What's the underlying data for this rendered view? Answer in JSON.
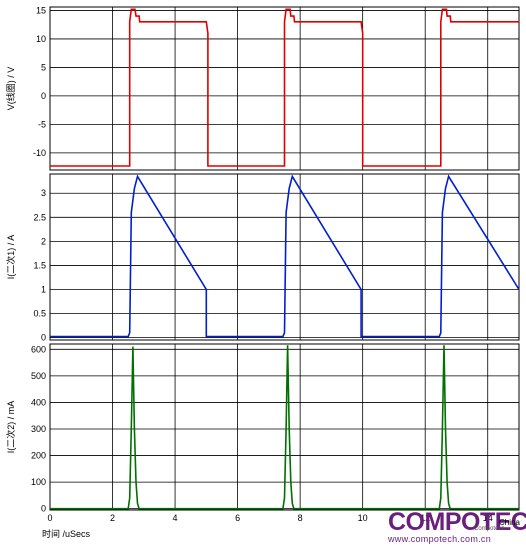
{
  "chart_data": [
    {
      "type": "line",
      "ylabel": "V(线圈) / V",
      "ylim": [
        -13,
        15.6
      ],
      "yticks": [
        -10,
        -5,
        0,
        5,
        10,
        15
      ],
      "grid": true,
      "color": "#e00000",
      "series": [
        {
          "points": [
            [
              0,
              -12.3
            ],
            [
              2.55,
              -12.3
            ],
            [
              2.55,
              13
            ],
            [
              2.6,
              15.2
            ],
            [
              2.72,
              15.2
            ],
            [
              2.75,
              14
            ],
            [
              2.85,
              14
            ],
            [
              2.87,
              13
            ],
            [
              5.0,
              13
            ],
            [
              5.05,
              11
            ],
            [
              5.05,
              -12.3
            ],
            [
              7.5,
              -12.3
            ],
            [
              7.5,
              13
            ],
            [
              7.55,
              15.2
            ],
            [
              7.68,
              15.2
            ],
            [
              7.7,
              14
            ],
            [
              7.8,
              14
            ],
            [
              7.82,
              13
            ],
            [
              9.95,
              13
            ],
            [
              10.0,
              11
            ],
            [
              10.0,
              -12.3
            ],
            [
              12.5,
              -12.3
            ],
            [
              12.5,
              13
            ],
            [
              12.55,
              15.2
            ],
            [
              12.68,
              15.2
            ],
            [
              12.7,
              14
            ],
            [
              12.8,
              14
            ],
            [
              12.82,
              13
            ],
            [
              15.0,
              13
            ]
          ]
        }
      ]
    },
    {
      "type": "line",
      "ylabel": "I(二次1) / A",
      "ylim": [
        -0.05,
        3.4
      ],
      "yticks": [
        0,
        0.5,
        1,
        1.5,
        2,
        2.5,
        3
      ],
      "grid": true,
      "color": "#0020d0",
      "series": [
        {
          "points": [
            [
              0,
              0.02
            ],
            [
              2.5,
              0.02
            ],
            [
              2.55,
              0.1
            ],
            [
              2.6,
              2.6
            ],
            [
              2.7,
              3.1
            ],
            [
              2.8,
              3.35
            ],
            [
              5.0,
              1.0
            ],
            [
              5.0,
              0.02
            ],
            [
              7.45,
              0.02
            ],
            [
              7.5,
              0.1
            ],
            [
              7.55,
              2.6
            ],
            [
              7.65,
              3.1
            ],
            [
              7.75,
              3.35
            ],
            [
              9.95,
              1.0
            ],
            [
              9.95,
              0.02
            ],
            [
              12.45,
              0.02
            ],
            [
              12.5,
              0.1
            ],
            [
              12.55,
              2.6
            ],
            [
              12.65,
              3.1
            ],
            [
              12.75,
              3.35
            ],
            [
              15.0,
              1.0
            ]
          ]
        }
      ]
    },
    {
      "type": "line",
      "ylabel": "I(二次2) / mA",
      "xlabel": "时间 /uSecs",
      "ylim": [
        -5,
        620
      ],
      "yticks": [
        0,
        100,
        200,
        300,
        400,
        500,
        600
      ],
      "xticks": [
        0,
        2,
        4,
        6,
        8,
        10,
        12,
        14
      ],
      "xlim": [
        0,
        15
      ],
      "grid": true,
      "color": "#007000",
      "series": [
        {
          "points": [
            [
              0,
              0
            ],
            [
              2.5,
              0
            ],
            [
              2.55,
              40
            ],
            [
              2.6,
              300
            ],
            [
              2.65,
              610
            ],
            [
              2.7,
              300
            ],
            [
              2.75,
              100
            ],
            [
              2.8,
              20
            ],
            [
              2.85,
              0
            ],
            [
              7.45,
              0
            ],
            [
              7.5,
              40
            ],
            [
              7.55,
              300
            ],
            [
              7.6,
              615
            ],
            [
              7.65,
              300
            ],
            [
              7.7,
              100
            ],
            [
              7.75,
              20
            ],
            [
              7.8,
              0
            ],
            [
              12.45,
              0
            ],
            [
              12.5,
              40
            ],
            [
              12.55,
              300
            ],
            [
              12.6,
              615
            ],
            [
              12.65,
              300
            ],
            [
              12.7,
              100
            ],
            [
              12.75,
              20
            ],
            [
              12.8,
              0
            ],
            [
              15.0,
              0
            ]
          ]
        }
      ]
    }
  ],
  "watermark": {
    "brand": "COMPOTECH",
    "region": "China",
    "url": "www.compotech.com.cn",
    "tag": "Compotech"
  }
}
